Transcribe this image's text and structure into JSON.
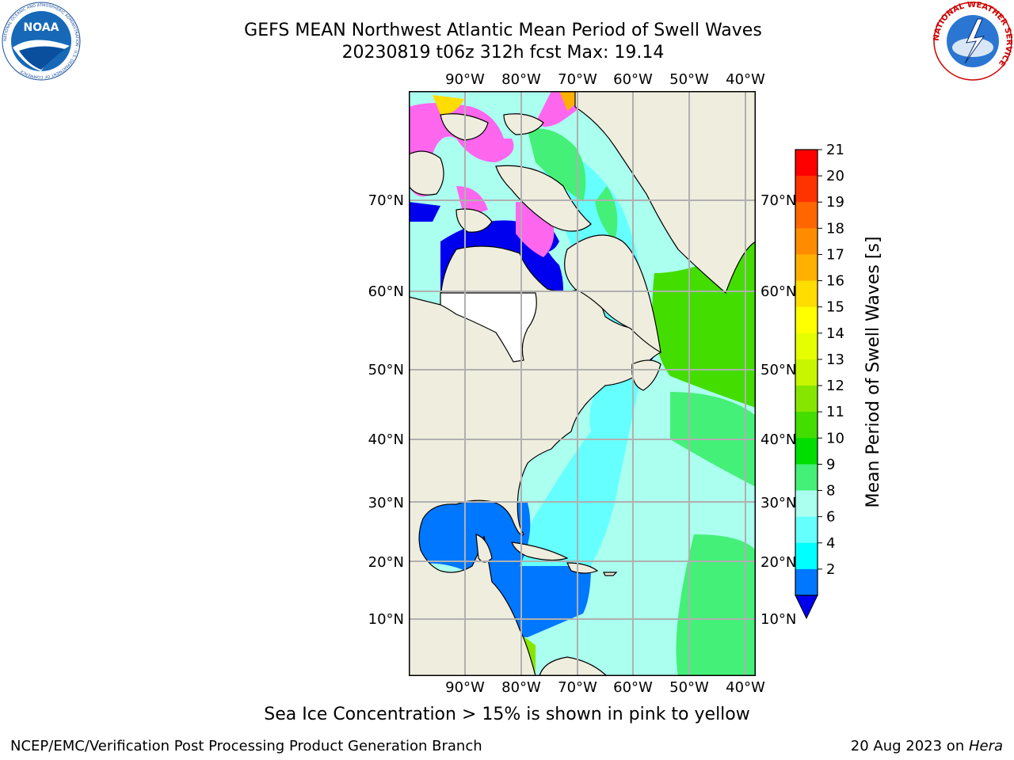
{
  "header": {
    "title_line1": "GEFS MEAN Northwest Atlantic Mean Period of Swell Waves",
    "title_line2": "20230819 t06z 312h fcst   Max: 19.14"
  },
  "logos": {
    "left": "NOAA",
    "left_ring_text": "NATIONAL OCEANIC AND ATMOSPHERIC ADMINISTRATION · U.S. DEPARTMENT OF COMMERCE",
    "right_ring_text": "NATIONAL WEATHER SERVICE"
  },
  "map": {
    "lon_labels": [
      "90°W",
      "80°W",
      "70°W",
      "60°W",
      "50°W",
      "40°W"
    ],
    "lat_labels": [
      "70°N",
      "60°N",
      "50°N",
      "40°N",
      "30°N",
      "20°N",
      "10°N"
    ],
    "colors": {
      "land": "#efedde",
      "grid": "#b0b0b0",
      "coast": "#000000"
    }
  },
  "colorbar": {
    "label": "Mean Period of Swell Waves [s]",
    "ticks": [
      "21",
      "20",
      "19",
      "18",
      "17",
      "16",
      "15",
      "14",
      "13",
      "12",
      "11",
      "10",
      "9",
      "8",
      "6",
      "4",
      "2"
    ],
    "levels": [
      "#ff0000",
      "#ff3300",
      "#ff6600",
      "#ff8c00",
      "#ffb000",
      "#ffdd00",
      "#ffff00",
      "#e6ff00",
      "#c8f500",
      "#86e600",
      "#44dd00",
      "#00dd00",
      "#44f078",
      "#aaffee",
      "#66ffff",
      "#00ffff",
      "#0077ff"
    ],
    "under_color": "#0000ee"
  },
  "footer": {
    "note": "Sea Ice Concentration > 15% is shown in pink to yellow",
    "org": "NCEP/EMC/Verification Post Processing Product Generation Branch",
    "date_prefix": "20 Aug 2023 on ",
    "date_host": "Hera"
  }
}
